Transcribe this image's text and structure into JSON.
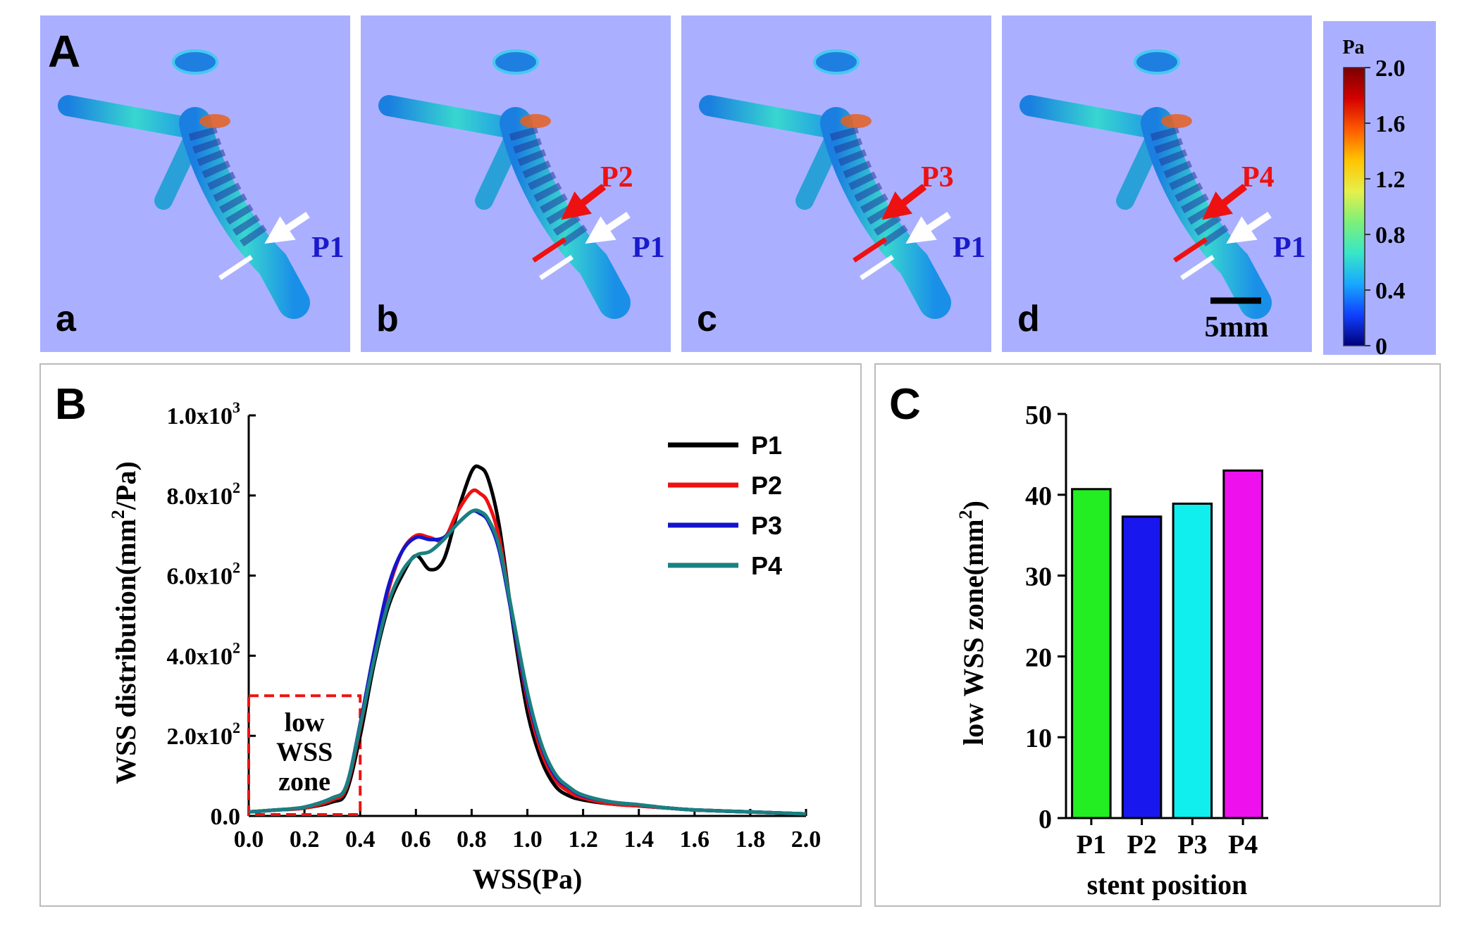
{
  "panel_labels": {
    "A": "A",
    "B": "B",
    "C": "C"
  },
  "sim_panels": [
    {
      "label": "a",
      "markers": [
        "P1"
      ]
    },
    {
      "label": "b",
      "markers": [
        "P2",
        "P1"
      ]
    },
    {
      "label": "c",
      "markers": [
        "P3",
        "P1"
      ]
    },
    {
      "label": "d",
      "markers": [
        "P4",
        "P1"
      ]
    }
  ],
  "scale_bar": "5mm",
  "colorbar": {
    "unit": "Pa",
    "ticks": [
      "2.0",
      "1.6",
      "1.2",
      "0.8",
      "0.4",
      "0"
    ],
    "colors": [
      "#7a0000",
      "#d40000",
      "#ff5a00",
      "#ffc400",
      "#e6f04a",
      "#7bf07a",
      "#38e6c8",
      "#18a8ff",
      "#1040ff",
      "#00007a"
    ]
  },
  "colors": {
    "sim_background": "#aab0ff",
    "p1_marker": "#1a1acc",
    "arrow_red": "#ee1111"
  },
  "chart_data": [
    {
      "type": "line",
      "xlabel": "WSS(Pa)",
      "ylabel_main": "WSS distribution(mm",
      "ylabel_sup": "2",
      "ylabel_end": "/Pa)",
      "xlim": [
        0,
        2.0
      ],
      "ylim": [
        0,
        1000
      ],
      "x_ticks": [
        "0.0",
        "0.2",
        "0.4",
        "0.6",
        "0.8",
        "1.0",
        "1.2",
        "1.4",
        "1.6",
        "1.8",
        "2.0"
      ],
      "y_ticks": [
        {
          "value": 0,
          "text": "0.0",
          "exp": ""
        },
        {
          "value": 200,
          "text": "2.0x10",
          "exp": "2"
        },
        {
          "value": 400,
          "text": "4.0x10",
          "exp": "2"
        },
        {
          "value": 600,
          "text": "6.0x10",
          "exp": "2"
        },
        {
          "value": 800,
          "text": "8.0x10",
          "exp": "2"
        },
        {
          "value": 1000,
          "text": "1.0x10",
          "exp": "3"
        }
      ],
      "annotation": {
        "lines": [
          "low",
          "WSS",
          "zone"
        ],
        "x_range": [
          0,
          0.4
        ],
        "y_range": [
          0,
          300
        ]
      },
      "legend_position": "top-right",
      "series": [
        {
          "name": "P1",
          "color": "#000000",
          "x": [
            0,
            0.1,
            0.2,
            0.3,
            0.35,
            0.4,
            0.45,
            0.5,
            0.55,
            0.6,
            0.65,
            0.7,
            0.75,
            0.8,
            0.83,
            0.86,
            0.9,
            0.95,
            1.0,
            1.05,
            1.1,
            1.15,
            1.2,
            1.3,
            1.4,
            1.5,
            1.6,
            1.8,
            2.0
          ],
          "y": [
            10,
            15,
            20,
            35,
            60,
            200,
            380,
            520,
            600,
            650,
            615,
            640,
            760,
            860,
            870,
            840,
            720,
            470,
            260,
            140,
            75,
            50,
            40,
            30,
            25,
            20,
            15,
            10,
            5
          ]
        },
        {
          "name": "P2",
          "color": "#ee1111",
          "x": [
            0,
            0.1,
            0.2,
            0.3,
            0.35,
            0.4,
            0.45,
            0.5,
            0.55,
            0.6,
            0.65,
            0.7,
            0.75,
            0.8,
            0.83,
            0.86,
            0.9,
            0.95,
            1.0,
            1.05,
            1.1,
            1.15,
            1.2,
            1.3,
            1.4,
            1.5,
            1.6,
            1.8,
            2.0
          ],
          "y": [
            10,
            15,
            20,
            40,
            70,
            220,
            400,
            560,
            660,
            700,
            695,
            690,
            760,
            810,
            805,
            780,
            690,
            480,
            290,
            160,
            90,
            60,
            45,
            30,
            25,
            20,
            15,
            10,
            5
          ]
        },
        {
          "name": "P3",
          "color": "#1414cc",
          "x": [
            0,
            0.1,
            0.2,
            0.3,
            0.35,
            0.4,
            0.45,
            0.5,
            0.55,
            0.6,
            0.65,
            0.7,
            0.75,
            0.8,
            0.83,
            0.86,
            0.9,
            0.95,
            1.0,
            1.05,
            1.1,
            1.15,
            1.2,
            1.3,
            1.4,
            1.5,
            1.6,
            1.8,
            2.0
          ],
          "y": [
            10,
            15,
            22,
            45,
            75,
            230,
            410,
            570,
            660,
            695,
            690,
            695,
            730,
            760,
            755,
            735,
            660,
            480,
            300,
            175,
            100,
            70,
            50,
            35,
            28,
            20,
            15,
            10,
            5
          ]
        },
        {
          "name": "P4",
          "color": "#1a8080",
          "x": [
            0,
            0.1,
            0.2,
            0.3,
            0.35,
            0.4,
            0.45,
            0.5,
            0.55,
            0.6,
            0.65,
            0.7,
            0.75,
            0.8,
            0.83,
            0.86,
            0.9,
            0.95,
            1.0,
            1.05,
            1.1,
            1.15,
            1.2,
            1.3,
            1.4,
            1.5,
            1.6,
            1.8,
            2.0
          ],
          "y": [
            10,
            15,
            22,
            45,
            75,
            225,
            390,
            530,
            610,
            650,
            660,
            690,
            730,
            760,
            760,
            740,
            670,
            490,
            310,
            180,
            105,
            72,
            52,
            35,
            28,
            20,
            15,
            10,
            5
          ]
        }
      ]
    },
    {
      "type": "bar",
      "xlabel": "stent position",
      "ylabel_main": "low WSS zone(mm",
      "ylabel_sup": "2",
      "ylabel_end": ")",
      "ylim": [
        0,
        50
      ],
      "y_ticks": [
        "0",
        "10",
        "20",
        "30",
        "40",
        "50"
      ],
      "categories": [
        "P1",
        "P2",
        "P3",
        "P4"
      ],
      "values": [
        40.7,
        37.3,
        38.9,
        43.0
      ],
      "colors": [
        "#22ee22",
        "#1818ee",
        "#11eeee",
        "#ee11ee"
      ]
    }
  ]
}
